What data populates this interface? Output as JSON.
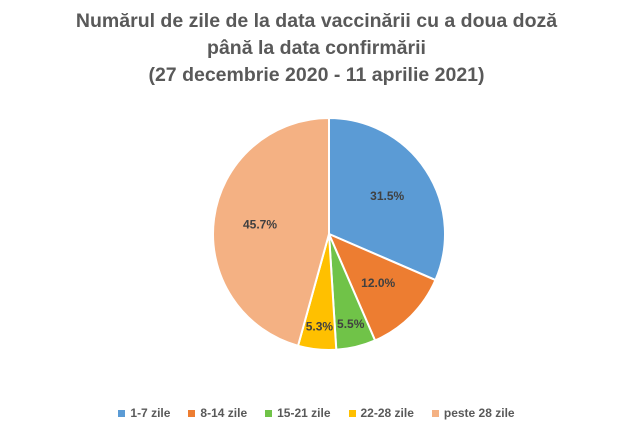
{
  "chart_data": {
    "type": "pie",
    "title_lines": [
      "Numărul de zile de la data vaccinării cu a doua doză",
      "până la data confirmării",
      "(27 decembrie 2020 - 11 aprilie 2021)"
    ],
    "categories": [
      "1-7 zile",
      "8-14 zile",
      "15-21 zile",
      "22-28 zile",
      "peste 28 zile"
    ],
    "values": [
      31.5,
      12.0,
      5.5,
      5.3,
      45.7
    ],
    "value_labels": [
      "31.5%",
      "12.0%",
      "5.5%",
      "5.3%",
      "45.7%"
    ],
    "colors": [
      "#5B9BD5",
      "#ED7D31",
      "#70C348",
      "#FFC000",
      "#F4B183"
    ],
    "start": "12 o'clock, clockwise",
    "legend_position": "bottom"
  }
}
